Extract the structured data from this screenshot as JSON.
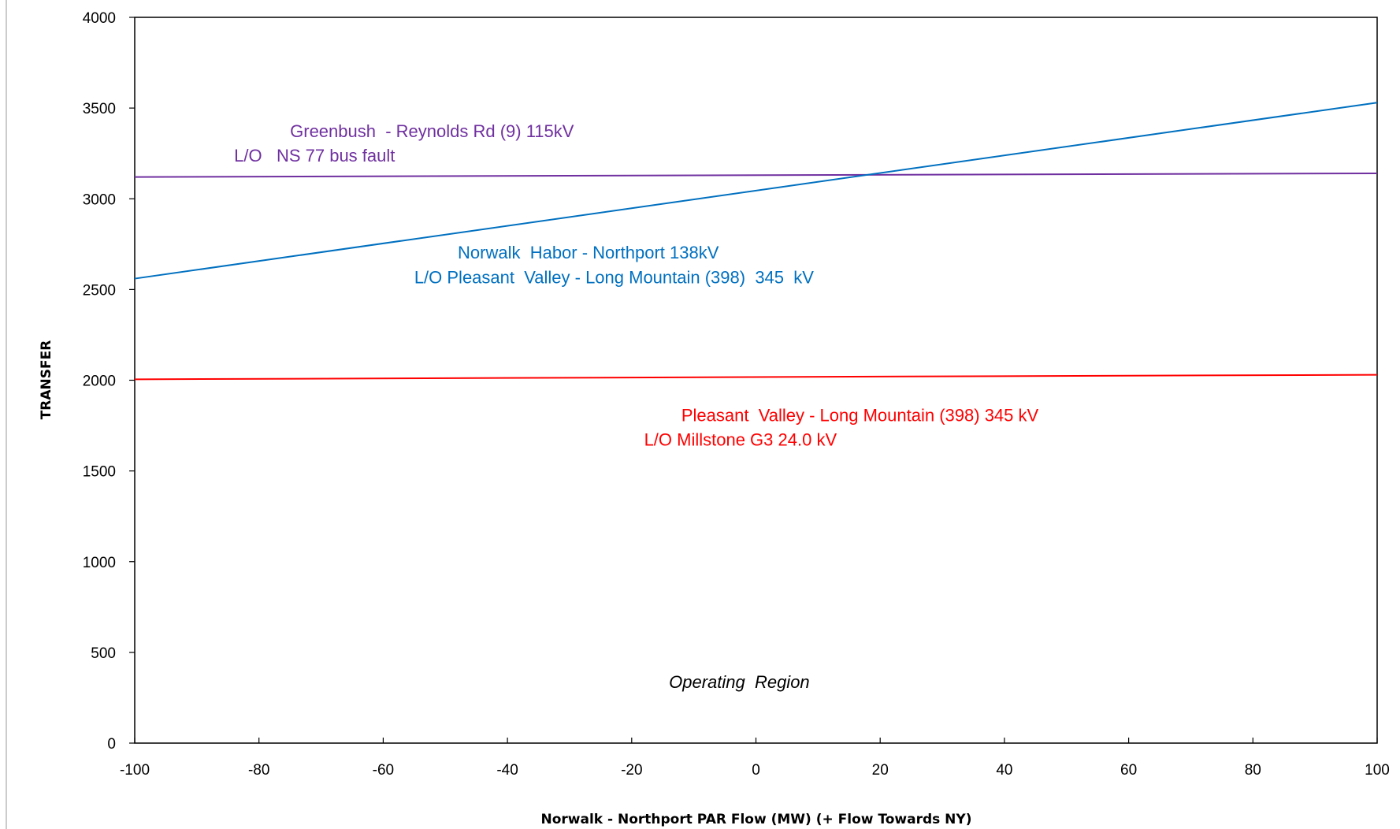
{
  "chart_data": {
    "type": "line",
    "title": "",
    "xlabel": "Norwalk - Northport PAR Flow (MW) (+ Flow Towards NY)",
    "ylabel": "TRANSFER",
    "xlim": [
      -100,
      100
    ],
    "ylim": [
      0,
      4000
    ],
    "x_ticks": [
      "-100",
      "-80",
      "-60",
      "-40",
      "-20",
      "0",
      "20",
      "40",
      "60",
      "80",
      "100"
    ],
    "y_ticks": [
      "0",
      "500",
      "1000",
      "1500",
      "2000",
      "2500",
      "3000",
      "3500",
      "4000"
    ],
    "grid": false,
    "legend": "none",
    "series": [
      {
        "name": "Greenbush - Reynolds Rd (9) 115kV L/O NS 77 bus fault",
        "color": "#7030A0",
        "x": [
          -100,
          100
        ],
        "y": [
          3120,
          3140
        ]
      },
      {
        "name": "Norwalk Habor - Northport 138kV L/O Pleasant Valley - Long Mountain (398) 345 kV",
        "color": "#0070C0",
        "x": [
          -100,
          100
        ],
        "y": [
          2560,
          3530
        ]
      },
      {
        "name": "Pleasant Valley - Long Mountain (398) 345 kV L/O Millstone G3 24.0 kV",
        "color": "#FF0000",
        "x": [
          -100,
          100
        ],
        "y": [
          2005,
          2030
        ]
      }
    ],
    "annotations": [
      {
        "id": "greenbush-line1",
        "text": "Greenbush  - Reynolds Rd (9) 115kV",
        "color": "#7030A0",
        "x": -75,
        "y": 3340,
        "italic": false
      },
      {
        "id": "greenbush-line2",
        "text": "L/O   NS 77 bus fault",
        "color": "#7030A0",
        "x": -84,
        "y": 3205,
        "italic": false
      },
      {
        "id": "norwalk-line1",
        "text": "Norwalk  Habor - Northport 138kV",
        "color": "#0070C0",
        "x": -48,
        "y": 2670,
        "italic": false
      },
      {
        "id": "norwalk-line2",
        "text": "L/O Pleasant  Valley - Long Mountain (398)  345  kV",
        "color": "#0070C0",
        "x": -55,
        "y": 2535,
        "italic": false
      },
      {
        "id": "pleasant-line1",
        "text": "Pleasant  Valley - Long Mountain (398) 345 kV",
        "color": "#FF0000",
        "x": -12,
        "y": 1775,
        "italic": false
      },
      {
        "id": "pleasant-line2",
        "text": "L/O Millstone G3 24.0 kV",
        "color": "#FF0000",
        "x": -18,
        "y": 1640,
        "italic": false
      },
      {
        "id": "operating-region",
        "text": "Operating  Region",
        "color": "#000000",
        "x": -14,
        "y": 305,
        "italic": true
      }
    ]
  }
}
